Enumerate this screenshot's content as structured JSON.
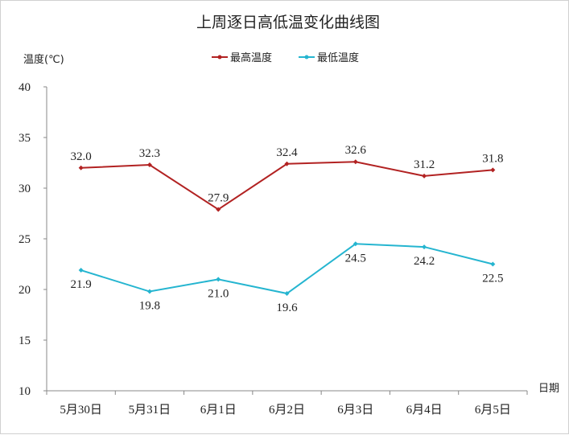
{
  "chart_data": {
    "type": "line",
    "title": "上周逐日高低温变化曲线图",
    "ylabel": "温度(℃)",
    "xlabel": "日期",
    "ylim": [
      10,
      40
    ],
    "yticks": [
      "10",
      "15",
      "20",
      "25",
      "30",
      "35",
      "40"
    ],
    "categories": [
      "5月30日",
      "5月31日",
      "6月1日",
      "6月2日",
      "6月3日",
      "6月4日",
      "6月5日"
    ],
    "legend_position": "top",
    "grid": false,
    "series": [
      {
        "name": "最高温度",
        "color": "#b22222",
        "values": [
          32.0,
          32.3,
          27.9,
          32.4,
          32.6,
          31.2,
          31.8
        ],
        "labels": [
          "32.0",
          "32.3",
          "27.9",
          "32.4",
          "32.6",
          "31.2",
          "31.8"
        ],
        "label_pos": "above"
      },
      {
        "name": "最低温度",
        "color": "#25b5d0",
        "values": [
          21.9,
          19.8,
          21.0,
          19.6,
          24.5,
          24.2,
          22.5
        ],
        "labels": [
          "21.9",
          "19.8",
          "21.0",
          "19.6",
          "24.5",
          "24.2",
          "22.5"
        ],
        "label_pos": "below"
      }
    ]
  }
}
